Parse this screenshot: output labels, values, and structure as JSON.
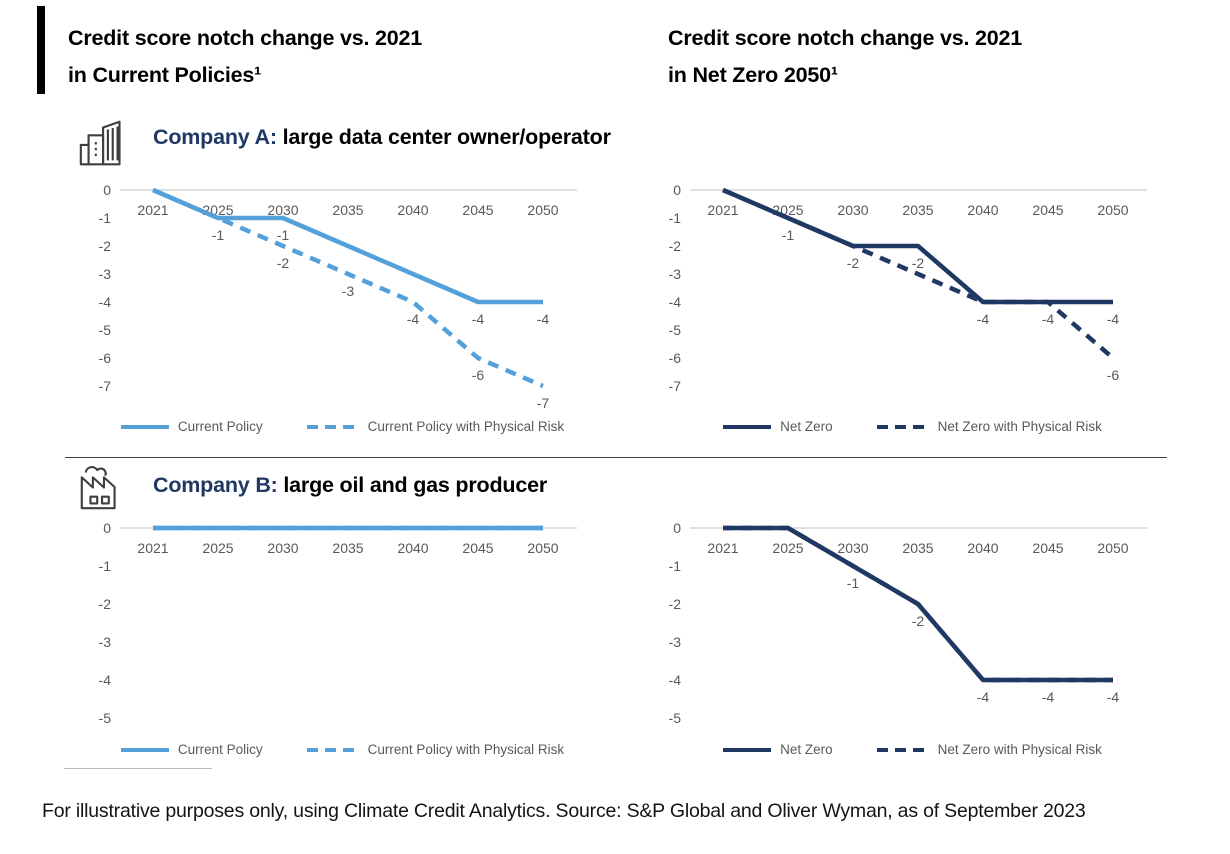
{
  "titles": {
    "left_line1": "Credit score notch change vs. 2021",
    "left_line2": "in Current Policies¹",
    "right_line1": "Credit score notch change vs. 2021",
    "right_line2": "in Net Zero 2050¹"
  },
  "sections": {
    "company_a": {
      "label": "Company A:",
      "description": " large data center owner/operator",
      "icon": "office-buildings-icon"
    },
    "company_b": {
      "label": "Company B:",
      "description": " large oil and gas producer",
      "icon": "factory-icon"
    }
  },
  "colors": {
    "light_blue": "#54A0DA",
    "navy": "#1F3864",
    "heading_navy": "#1F3864",
    "axis_text": "#595959",
    "gridline": "#D6D6D6",
    "title_text": "#000000"
  },
  "footer": "For illustrative purposes only, using Climate Credit Analytics. Source: S&P Global and Oliver Wyman, as of September 2023",
  "chart_data": [
    {
      "type": "line",
      "company": "Company A: large data center owner/operator",
      "scenario": "Current Policies",
      "categories": [
        "2021",
        "2025",
        "2030",
        "2035",
        "2040",
        "2045",
        "2050"
      ],
      "ylim": [
        -7,
        0
      ],
      "yticks": [
        "0",
        "-1",
        "-2",
        "-3",
        "-4",
        "-5",
        "-6",
        "-7"
      ],
      "grid": "zero-line-only",
      "legend_position": "bottom",
      "color": "#54A0DA",
      "series": [
        {
          "name": "Current Policy",
          "style": "solid",
          "values": [
            0,
            -1,
            -1,
            -2,
            -3,
            -4,
            -4
          ],
          "labels": [
            null,
            "-1",
            "-1",
            null,
            null,
            "-4",
            "-4"
          ]
        },
        {
          "name": "Current Policy with Physical Risk",
          "style": "dashed",
          "values": [
            0,
            -1,
            -2,
            -3,
            -4,
            -6,
            -7
          ],
          "labels": [
            null,
            null,
            "-2",
            "-3",
            "-4",
            "-6",
            "-7"
          ]
        }
      ]
    },
    {
      "type": "line",
      "company": "Company A: large data center owner/operator",
      "scenario": "Net Zero 2050",
      "categories": [
        "2021",
        "2025",
        "2030",
        "2035",
        "2040",
        "2045",
        "2050"
      ],
      "ylim": [
        -7,
        0
      ],
      "yticks": [
        "0",
        "-1",
        "-2",
        "-3",
        "-4",
        "-5",
        "-6",
        "-7"
      ],
      "grid": "zero-line-only",
      "legend_position": "bottom",
      "color": "#1F3864",
      "series": [
        {
          "name": "Net Zero",
          "style": "solid",
          "values": [
            0,
            -1,
            -2,
            -2,
            -4,
            -4,
            -4
          ],
          "labels": [
            null,
            "-1",
            "-2",
            "-2",
            "-4",
            "-4",
            "-4"
          ]
        },
        {
          "name": "Net Zero with Physical Risk",
          "style": "dashed",
          "values": [
            0,
            -1,
            -2,
            -3,
            -4,
            -4,
            -6
          ],
          "labels": [
            null,
            null,
            null,
            null,
            null,
            null,
            "-6"
          ]
        }
      ]
    },
    {
      "type": "line",
      "company": "Company B: large oil and gas producer",
      "scenario": "Current Policies",
      "categories": [
        "2021",
        "2025",
        "2030",
        "2035",
        "2040",
        "2045",
        "2050"
      ],
      "ylim": [
        -5,
        0
      ],
      "yticks": [
        "0",
        "-1",
        "-2",
        "-3",
        "-4",
        "-5"
      ],
      "grid": "zero-line-only",
      "legend_position": "bottom",
      "color": "#54A0DA",
      "series": [
        {
          "name": "Current Policy",
          "style": "solid",
          "values": [
            0,
            0,
            0,
            0,
            0,
            0,
            0
          ],
          "labels": [
            null,
            null,
            null,
            null,
            null,
            null,
            null
          ]
        },
        {
          "name": "Current Policy with Physical Risk",
          "style": "dashed",
          "values": [
            0,
            0,
            0,
            0,
            0,
            0,
            0
          ],
          "labels": [
            null,
            null,
            null,
            null,
            null,
            null,
            null
          ]
        }
      ]
    },
    {
      "type": "line",
      "company": "Company B: large oil and gas producer",
      "scenario": "Net Zero 2050",
      "categories": [
        "2021",
        "2025",
        "2030",
        "2035",
        "2040",
        "2045",
        "2050"
      ],
      "ylim": [
        -5,
        0
      ],
      "yticks": [
        "0",
        "-1",
        "-2",
        "-3",
        "-4",
        "-5"
      ],
      "grid": "zero-line-only",
      "legend_position": "bottom",
      "color": "#1F3864",
      "series": [
        {
          "name": "Net Zero",
          "style": "solid",
          "values": [
            0,
            0,
            -1,
            -2,
            -4,
            -4,
            -4
          ],
          "labels": [
            null,
            null,
            "-1",
            "-2",
            "-4",
            "-4",
            "-4"
          ]
        },
        {
          "name": "Net Zero with Physical Risk",
          "style": "dashed",
          "values": [
            0,
            0,
            -1,
            -2,
            -4,
            -4,
            -4
          ],
          "labels": [
            null,
            null,
            null,
            null,
            null,
            null,
            null
          ]
        }
      ]
    }
  ]
}
